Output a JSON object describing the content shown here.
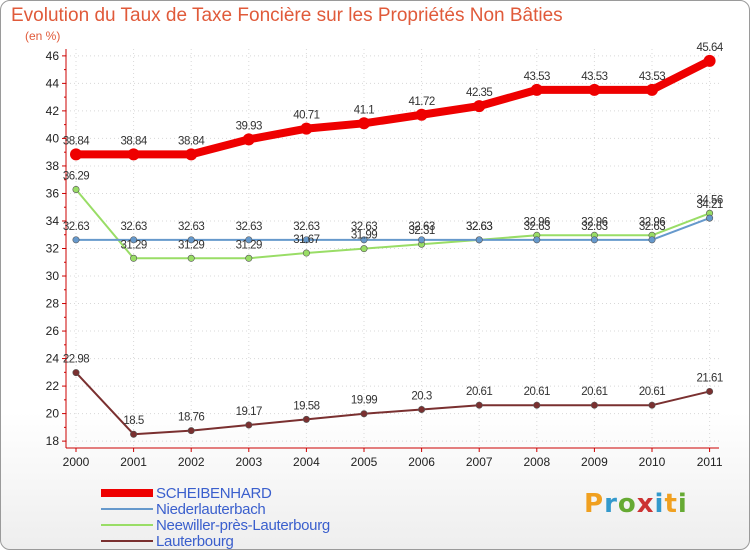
{
  "chart_data": {
    "type": "line",
    "title": "Evolution du Taux de Taxe Foncière sur les Propriétés Non Bâties",
    "ylabel": "(en %)",
    "xlabel": "",
    "x": [
      "2000",
      "2001",
      "2002",
      "2003",
      "2004",
      "2005",
      "2006",
      "2007",
      "2008",
      "2009",
      "2010",
      "2011"
    ],
    "ylim": [
      17.5,
      46.5
    ],
    "yticks": [
      18,
      20,
      22,
      24,
      26,
      28,
      30,
      32,
      34,
      36,
      38,
      40,
      42,
      44,
      46
    ],
    "grid": true,
    "legend_position": "bottom-left",
    "series": [
      {
        "name": "SCHEIBENHARD",
        "color": "#ee0000",
        "width": 8,
        "values": [
          38.84,
          38.84,
          38.84,
          39.93,
          40.71,
          41.1,
          41.72,
          42.35,
          43.53,
          43.53,
          43.53,
          45.64
        ],
        "labels": [
          "38.84",
          "38.84",
          "38.84",
          "39.93",
          "40.71",
          "41.1",
          "41.72",
          "42.35",
          "43.53",
          "43.53",
          "43.53",
          "45.64"
        ]
      },
      {
        "name": "Niederlauterbach",
        "color": "#6699cc",
        "width": 2,
        "values": [
          32.63,
          32.63,
          32.63,
          32.63,
          32.63,
          32.63,
          32.63,
          32.63,
          32.63,
          32.63,
          32.63,
          34.21
        ],
        "labels": [
          "32.63",
          "32.63",
          "32.63",
          "32.63",
          "32.63",
          "32.63",
          "32.63",
          "32.63",
          "32.63",
          "32.63",
          "32.63",
          "34.21"
        ]
      },
      {
        "name": "Neewiller-près-Lauterbourg",
        "color": "#99dd66",
        "width": 2,
        "values": [
          36.29,
          31.29,
          31.29,
          31.29,
          31.67,
          31.99,
          32.31,
          32.63,
          32.96,
          32.96,
          32.96,
          34.56
        ],
        "labels": [
          "36.29",
          "31.29",
          "31.29",
          "31.29",
          "31.67",
          "31.99",
          "32.31",
          "32.63",
          "32.96",
          "32.96",
          "32.96",
          "34.56"
        ]
      },
      {
        "name": "Lauterbourg",
        "color": "#7a3030",
        "width": 2,
        "values": [
          22.98,
          18.5,
          18.76,
          19.17,
          19.58,
          19.99,
          20.3,
          20.61,
          20.61,
          20.61,
          20.61,
          21.61
        ],
        "labels": [
          "22.98",
          "18.5",
          "18.76",
          "19.17",
          "19.58",
          "19.99",
          "20.3",
          "20.61",
          "20.61",
          "20.61",
          "20.61",
          "21.61"
        ]
      }
    ]
  },
  "brand": {
    "text": "Proxiti",
    "letters": [
      {
        "ch": "P",
        "color": "#f0a020"
      },
      {
        "ch": "r",
        "color": "#3399cc"
      },
      {
        "ch": "o",
        "color": "#66aa33"
      },
      {
        "ch": "x",
        "color": "#cc3333"
      },
      {
        "ch": "i",
        "color": "#3399cc"
      },
      {
        "ch": "t",
        "color": "#f0a020"
      },
      {
        "ch": "i",
        "color": "#66aa33"
      }
    ]
  }
}
